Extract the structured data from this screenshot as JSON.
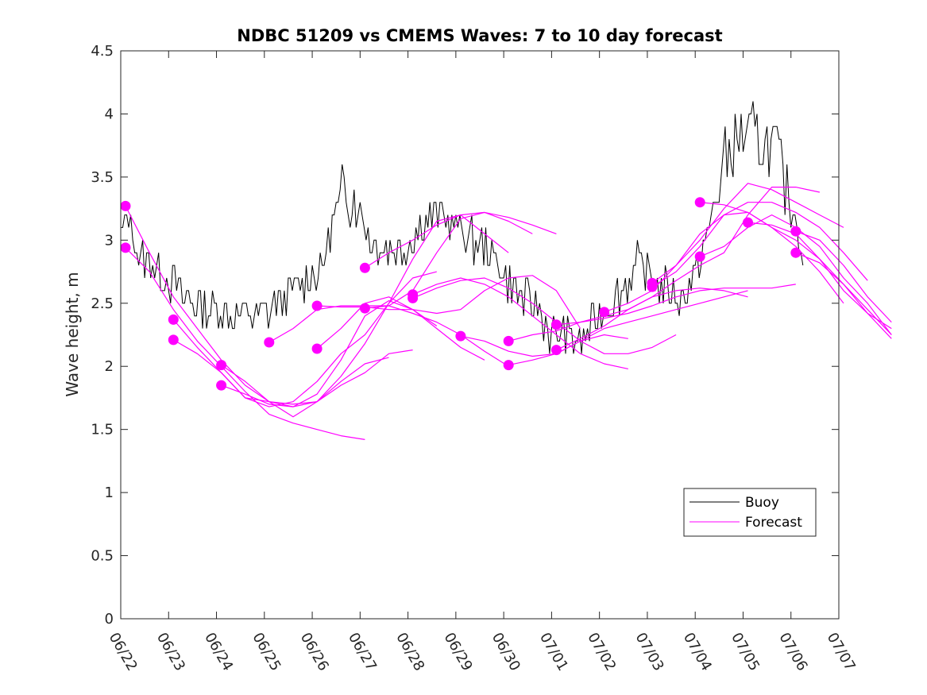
{
  "chart_data": {
    "type": "line",
    "title": "NDBC 51209 vs CMEMS Waves: 7 to 10 day forecast",
    "xlabel": "",
    "ylabel": "Wave height, m",
    "xlim": [
      "06/22",
      "07/07"
    ],
    "ylim": [
      0,
      4.5
    ],
    "x_ticks": [
      "06/22",
      "06/23",
      "06/24",
      "06/25",
      "06/26",
      "06/27",
      "06/28",
      "06/29",
      "06/30",
      "07/01",
      "07/02",
      "07/03",
      "07/04",
      "07/05",
      "07/06",
      "07/07"
    ],
    "y_ticks": [
      0,
      0.5,
      1,
      1.5,
      2,
      2.5,
      3,
      3.5,
      4,
      4.5
    ],
    "y_tick_labels": [
      "0",
      "0.5",
      "1",
      "1.5",
      "2",
      "2.5",
      "3",
      "3.5",
      "4",
      "4.5"
    ],
    "legend": {
      "position": "bottom-right",
      "entries": [
        "Buoy",
        "Forecast"
      ]
    },
    "grid": false,
    "colors": {
      "buoy": "#000000",
      "forecast": "#ff00ff",
      "axes": "#262626"
    },
    "x_unit": "days since 06/22 00:00",
    "buoy": {
      "name": "Buoy",
      "anchors": [
        [
          0.0,
          3.0
        ],
        [
          0.15,
          3.2
        ],
        [
          0.4,
          2.85
        ],
        [
          0.7,
          2.8
        ],
        [
          1.0,
          2.7
        ],
        [
          1.3,
          2.55
        ],
        [
          1.6,
          2.5
        ],
        [
          2.0,
          2.45
        ],
        [
          2.5,
          2.4
        ],
        [
          3.0,
          2.4
        ],
        [
          3.3,
          2.5
        ],
        [
          3.6,
          2.6
        ],
        [
          3.9,
          2.7
        ],
        [
          4.2,
          2.8
        ],
        [
          4.5,
          3.2
        ],
        [
          4.7,
          3.4
        ],
        [
          4.95,
          3.3
        ],
        [
          5.2,
          3.0
        ],
        [
          5.5,
          2.95
        ],
        [
          5.8,
          2.9
        ],
        [
          6.1,
          3.0
        ],
        [
          6.4,
          3.2
        ],
        [
          6.7,
          3.2
        ],
        [
          7.0,
          3.1
        ],
        [
          7.3,
          3.0
        ],
        [
          7.6,
          2.95
        ],
        [
          7.9,
          2.8
        ],
        [
          8.2,
          2.6
        ],
        [
          8.5,
          2.5
        ],
        [
          8.75,
          2.45
        ],
        [
          9.0,
          2.25
        ],
        [
          9.3,
          2.25
        ],
        [
          9.6,
          2.2
        ],
        [
          9.9,
          2.35
        ],
        [
          10.2,
          2.5
        ],
        [
          10.5,
          2.6
        ],
        [
          10.8,
          2.8
        ],
        [
          11.1,
          2.7
        ],
        [
          11.4,
          2.6
        ],
        [
          11.7,
          2.55
        ],
        [
          12.0,
          2.7
        ],
        [
          12.3,
          3.1
        ],
        [
          12.6,
          3.6
        ],
        [
          12.9,
          3.8
        ],
        [
          13.1,
          3.85
        ],
        [
          13.4,
          3.75
        ],
        [
          13.7,
          3.7
        ],
        [
          13.9,
          3.4
        ],
        [
          14.1,
          3.2
        ],
        [
          14.25,
          2.9
        ]
      ],
      "noise_amplitude": 0.16
    },
    "forecasts": [
      {
        "start": 0.1,
        "values": [
          3.27,
          2.9,
          2.55,
          2.3,
          2.05,
          1.85,
          1.72,
          1.7,
          1.72,
          1.85,
          1.95,
          2.1,
          2.13
        ]
      },
      {
        "start": 0.1,
        "values": [
          2.94,
          2.75,
          2.45,
          2.2,
          2.0,
          1.8,
          1.62,
          1.55,
          1.5,
          1.45,
          1.42
        ]
      },
      {
        "start": 1.1,
        "values": [
          2.37,
          2.15,
          1.95,
          1.75,
          1.72,
          1.68,
          1.72,
          1.88,
          2.02,
          2.07
        ]
      },
      {
        "start": 1.1,
        "values": [
          2.21,
          2.1,
          1.95,
          1.75,
          1.68,
          1.72,
          1.88,
          2.1,
          2.25,
          2.5,
          2.7,
          2.75
        ]
      },
      {
        "start": 2.1,
        "values": [
          2.01,
          1.88,
          1.72,
          1.6,
          1.72,
          1.92,
          2.18,
          2.5,
          2.85,
          3.15,
          3.2,
          3.05,
          2.9
        ]
      },
      {
        "start": 2.1,
        "values": [
          1.85,
          1.78,
          1.7,
          1.68,
          1.78,
          2.05,
          2.4,
          2.52,
          2.45,
          2.32
        ]
      },
      {
        "start": 3.1,
        "values": [
          2.19,
          2.3,
          2.45,
          2.48,
          2.48,
          2.48,
          2.6,
          2.9,
          3.17,
          3.22,
          3.15,
          3.05
        ]
      },
      {
        "start": 4.1,
        "values": [
          2.48,
          2.47,
          2.47,
          2.45,
          2.45,
          2.42,
          2.45,
          2.6,
          2.7,
          2.72,
          2.6,
          2.3
        ]
      },
      {
        "start": 4.1,
        "values": [
          2.14,
          2.3,
          2.5,
          2.55,
          2.45,
          2.3,
          2.15,
          2.05
        ]
      },
      {
        "start": 5.1,
        "values": [
          2.78,
          2.9,
          3.0,
          3.12,
          3.2,
          3.22,
          3.18,
          3.12,
          3.05
        ]
      },
      {
        "start": 5.1,
        "values": [
          2.46,
          2.48,
          2.42,
          2.35,
          2.25,
          2.12,
          2.0
        ]
      },
      {
        "start": 6.1,
        "values": [
          2.57,
          2.65,
          2.7,
          2.65,
          2.55,
          2.4,
          2.25,
          2.1,
          2.02,
          1.98
        ]
      },
      {
        "start": 6.1,
        "values": [
          2.54,
          2.62,
          2.68,
          2.7,
          2.62,
          2.5,
          2.35,
          2.2,
          2.1,
          2.1,
          2.15,
          2.25
        ]
      },
      {
        "start": 7.1,
        "values": [
          2.24,
          2.2,
          2.12,
          2.08,
          2.1,
          2.2,
          2.25,
          2.22
        ]
      },
      {
        "start": 8.1,
        "values": [
          2.2,
          2.25,
          2.28,
          2.35,
          2.4,
          2.45,
          2.55,
          2.6,
          2.62,
          2.6,
          2.55
        ]
      },
      {
        "start": 8.1,
        "values": [
          2.01,
          2.05,
          2.1,
          2.2,
          2.3,
          2.35,
          2.4,
          2.45,
          2.5,
          2.55,
          2.6
        ]
      },
      {
        "start": 9.1,
        "values": [
          2.33,
          2.35,
          2.38,
          2.42,
          2.48,
          2.55,
          2.6,
          2.62,
          2.62,
          2.62,
          2.65
        ]
      },
      {
        "start": 9.1,
        "values": [
          2.13,
          2.22,
          2.32,
          2.45,
          2.55,
          2.68,
          2.8,
          2.9,
          3.2,
          3.42,
          3.42,
          3.38
        ]
      },
      {
        "start": 10.1,
        "values": [
          2.43,
          2.5,
          2.6,
          2.8,
          3.0,
          3.25,
          3.45,
          3.4,
          3.3,
          3.2,
          3.1
        ]
      },
      {
        "start": 11.1,
        "values": [
          2.63,
          2.75,
          2.95,
          3.2,
          3.3,
          3.3,
          3.22,
          3.1,
          2.9,
          2.68
        ]
      },
      {
        "start": 11.1,
        "values": [
          2.66,
          2.8,
          3.05,
          3.2,
          3.22,
          3.1,
          2.95,
          2.75,
          2.5
        ]
      },
      {
        "start": 12.1,
        "values": [
          3.3,
          3.28,
          3.22,
          3.1,
          3.0,
          2.85,
          2.65,
          2.45,
          2.25
        ]
      },
      {
        "start": 12.1,
        "values": [
          2.87,
          2.95,
          3.1,
          3.2,
          3.1,
          2.95,
          2.7,
          2.5,
          2.25
        ]
      },
      {
        "start": 13.1,
        "values": [
          3.14,
          3.12,
          3.05,
          2.85,
          2.6,
          2.42,
          2.3
        ]
      },
      {
        "start": 14.1,
        "values": [
          3.07,
          3.0,
          2.8,
          2.55,
          2.35
        ]
      },
      {
        "start": 14.1,
        "values": [
          2.9,
          2.82,
          2.65,
          2.42,
          2.22
        ]
      }
    ]
  }
}
